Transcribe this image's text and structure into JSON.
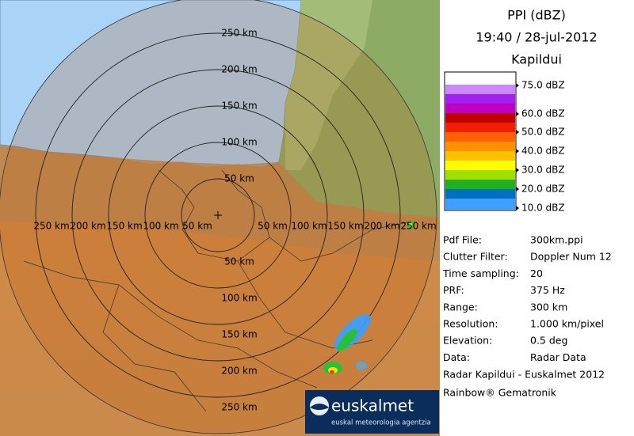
{
  "map": {
    "ring_labels": {
      "north": [
        "250 km",
        "200 km",
        "150 km",
        "100 km",
        "50 km"
      ],
      "west": [
        "250 km",
        "200 km",
        "150 km",
        "100 km",
        "50 km"
      ],
      "east": [
        "50 km",
        "100 km",
        "150 km",
        "200 km",
        "250 km"
      ],
      "south": [
        "50 km",
        "100 km",
        "150 km",
        "200 km",
        "250 km"
      ]
    }
  },
  "logo": {
    "name": "euskalmet",
    "tagline": "euskal meteorologia agentzia"
  },
  "header": {
    "lines": [
      "PPI (dBZ)",
      "19:40 / 28-jul-2012",
      "Kapildui"
    ]
  },
  "legend": {
    "labels": [
      "75.0 dBZ",
      "60.0 dBZ",
      "50.0 dBZ",
      "40.0 dBZ",
      "30.0 dBZ",
      "20.0 dBZ",
      "10.0 dBZ"
    ]
  },
  "info": {
    "rows": [
      [
        "Pdf File:",
        "300km.ppi"
      ],
      [
        "Clutter Filter:",
        "Doppler Num 12"
      ],
      [
        "Time sampling:",
        "20"
      ],
      [
        "PRF:",
        "375 Hz"
      ],
      [
        "Range:",
        "300 km"
      ],
      [
        "Resolution:",
        "1.000 km/pixel"
      ],
      [
        "Elevation:",
        "0.5 deg"
      ],
      [
        "Data:",
        "Radar Data"
      ]
    ]
  },
  "footer": [
    "Radar Kapildui - Euskalmet 2012",
    "Rainbow® Gematronik"
  ]
}
